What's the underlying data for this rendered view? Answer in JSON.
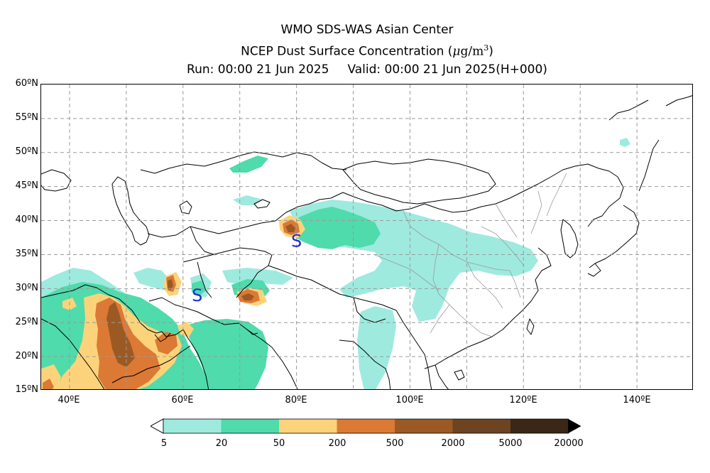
{
  "title": {
    "line1": "WMO SDS-WAS Asian Center",
    "line2_prefix": "NCEP Dust Surface Concentration (",
    "line2_unit_mu": "μ",
    "line2_unit_rest": "g/m",
    "line2_unit_exp": "3",
    "line2_suffix": ")",
    "run": "Run: 00:00 21 Jun 2025",
    "valid": "Valid: 00:00 21 Jun 2025(H+000)"
  },
  "map": {
    "lon_range": [
      35,
      150
    ],
    "lat_range": [
      15,
      60
    ],
    "grid": true,
    "lat_labels": [
      "60ºN",
      "55ºN",
      "50ºN",
      "45ºN",
      "40ºN",
      "35ºN",
      "30ºN",
      "25ºN",
      "20ºN",
      "15ºN"
    ],
    "lon_labels": [
      "40ºE",
      "60ºE",
      "80ºE",
      "100ºE",
      "120ºE",
      "140ºE"
    ],
    "markers": [
      {
        "symbol": "S",
        "lon": 80,
        "lat": 37
      },
      {
        "symbol": "S",
        "lon": 62.5,
        "lat": 29
      }
    ]
  },
  "colorbar": {
    "levels": [
      "5",
      "20",
      "50",
      "200",
      "500",
      "2000",
      "5000",
      "20000"
    ],
    "colors": [
      "#ffffff",
      "#9eeadf",
      "#4fdbab",
      "#fcd37a",
      "#dc7935",
      "#9b5a24",
      "#6e4322",
      "#3a2715",
      "#000000"
    ]
  }
}
